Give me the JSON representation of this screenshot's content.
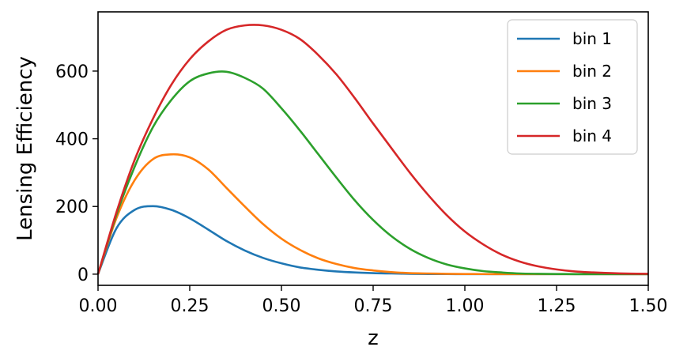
{
  "chart_data": {
    "type": "line",
    "xlabel": "z",
    "ylabel": "Lensing Efficiency",
    "xlim": [
      0,
      1.5
    ],
    "ylim": [
      -33,
      775
    ],
    "xticks": [
      0.0,
      0.25,
      0.5,
      0.75,
      1.0,
      1.25,
      1.5
    ],
    "xtick_labels": [
      "0.00",
      "0.25",
      "0.50",
      "0.75",
      "1.00",
      "1.25",
      "1.50"
    ],
    "yticks": [
      0,
      200,
      400,
      600
    ],
    "ytick_labels": [
      "0",
      "200",
      "400",
      "600"
    ],
    "grid": false,
    "legend_position": "top-right",
    "x": [
      0.0,
      0.05,
      0.1,
      0.15,
      0.2,
      0.25,
      0.3,
      0.35,
      0.4,
      0.45,
      0.5,
      0.55,
      0.6,
      0.65,
      0.7,
      0.75,
      0.8,
      0.85,
      0.9,
      0.95,
      1.0,
      1.05,
      1.1,
      1.15,
      1.2,
      1.25,
      1.3,
      1.35,
      1.4,
      1.45,
      1.5
    ],
    "series": [
      {
        "name": "bin 1",
        "color": "#1f77b4",
        "values": [
          0,
          135,
          190,
          201,
          190,
          165,
          132,
          98,
          70,
          48,
          32,
          20,
          13,
          8,
          5,
          3,
          2,
          1,
          0.5,
          0.3,
          0.2,
          0.1,
          0.05,
          0,
          0,
          0,
          0,
          0,
          0,
          0,
          0
        ]
      },
      {
        "name": "bin 2",
        "color": "#ff7f0e",
        "values": [
          0,
          165,
          278,
          340,
          354,
          345,
          310,
          255,
          200,
          148,
          105,
          72,
          47,
          30,
          18,
          11,
          6,
          3,
          2,
          1,
          0.5,
          0.3,
          0.1,
          0,
          0,
          0,
          0,
          0,
          0,
          0,
          0
        ]
      },
      {
        "name": "bin 3",
        "color": "#2ca02c",
        "values": [
          0,
          175,
          318,
          435,
          515,
          570,
          593,
          598,
          580,
          548,
          490,
          425,
          355,
          285,
          218,
          160,
          112,
          75,
          48,
          29,
          17,
          9,
          5,
          2,
          1,
          0.5,
          0.2,
          0,
          0,
          0,
          0
        ]
      },
      {
        "name": "bin 4",
        "color": "#d62728",
        "values": [
          0,
          182,
          338,
          460,
          560,
          635,
          687,
          722,
          735,
          735,
          722,
          695,
          648,
          590,
          520,
          445,
          372,
          300,
          234,
          175,
          126,
          88,
          58,
          37,
          23,
          14,
          8,
          5,
          3,
          1.5,
          1
        ]
      }
    ]
  }
}
